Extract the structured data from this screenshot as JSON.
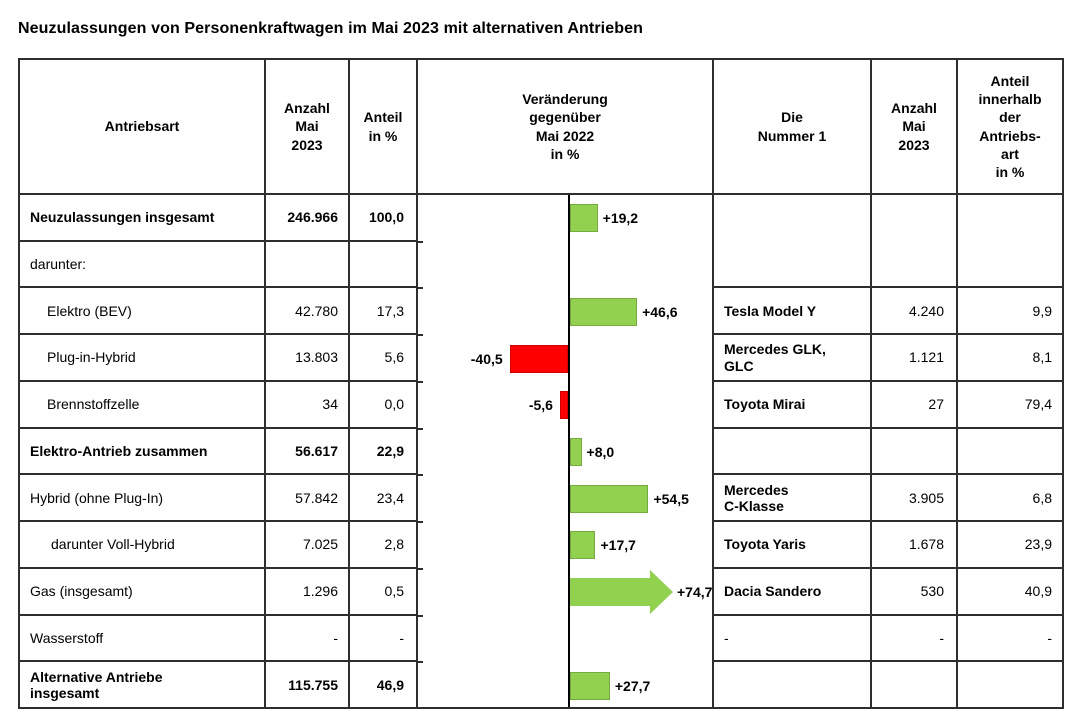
{
  "title": "Neuzulassungen von Personenkraftwagen im Mai 2023 mit alternativen Antrieben",
  "table": {
    "headers": {
      "antriebsart": "Antriebsart",
      "anzahl_mai_2023": "Anzahl\nMai\n2023",
      "anteil_prozent": "Anteil\nin %",
      "veraenderung": "Veränderung\ngegenüber\nMai 2022\nin %",
      "die_nummer_1": "Die\nNummer 1",
      "anzahl_mai_2023_modell": "Anzahl\nMai\n2023",
      "anteil_innerhalb": "Anteil\ninnerhalb\nder\nAntriebs-\nart\nin %"
    },
    "rows": [
      {
        "antriebsart": "Neuzulassungen insgesamt",
        "bold": true,
        "indent": 0,
        "anzahl": "246.966",
        "anteil": "100,0",
        "merged_top": true
      },
      {
        "antriebsart": "darunter:",
        "bold": false,
        "indent": 0,
        "anzahl": "",
        "anteil": "",
        "merged_top": true
      },
      {
        "antriebsart": "Elektro (BEV)",
        "bold": false,
        "indent": 1,
        "anzahl": "42.780",
        "anteil": "17,3",
        "model": "Tesla Model Y",
        "model_bold": true,
        "model_anzahl": "4.240",
        "model_anteil": "9,9"
      },
      {
        "antriebsart": "Plug-in-Hybrid",
        "bold": false,
        "indent": 1,
        "anzahl": "13.803",
        "anteil": "5,6",
        "model": "Mercedes GLK,\nGLC",
        "model_bold": true,
        "model_anzahl": "1.121",
        "model_anteil": "8,1"
      },
      {
        "antriebsart": "Brennstoffzelle",
        "bold": false,
        "indent": 1,
        "anzahl": "34",
        "anteil": "0,0",
        "model": "Toyota Mirai",
        "model_bold": true,
        "model_anzahl": "27",
        "model_anteil": "79,4"
      },
      {
        "antriebsart": "Elektro-Antrieb zusammen",
        "bold": true,
        "indent": 0,
        "anzahl": "56.617",
        "anteil": "22,9",
        "model": "",
        "model_bold": false,
        "model_anzahl": "",
        "model_anteil": ""
      },
      {
        "antriebsart": "Hybrid (ohne Plug-In)",
        "bold": false,
        "indent": 0,
        "anzahl": "57.842",
        "anteil": "23,4",
        "model": "Mercedes\nC-Klasse",
        "model_bold": true,
        "model_anzahl": "3.905",
        "model_anteil": "6,8"
      },
      {
        "antriebsart": "darunter Voll-Hybrid",
        "bold": false,
        "indent": 2,
        "anzahl": "7.025",
        "anteil": "2,8",
        "model": "Toyota Yaris",
        "model_bold": true,
        "model_anzahl": "1.678",
        "model_anteil": "23,9"
      },
      {
        "antriebsart": "Gas (insgesamt)",
        "bold": false,
        "indent": 0,
        "anzahl": "1.296",
        "anteil": "0,5",
        "model": "Dacia Sandero",
        "model_bold": true,
        "model_anzahl": "530",
        "model_anteil": "40,9"
      },
      {
        "antriebsart": "Wasserstoff",
        "bold": false,
        "indent": 0,
        "anzahl": "-",
        "anteil": "-",
        "model": "-",
        "model_bold": false,
        "model_anzahl": "-",
        "model_anteil": "-"
      },
      {
        "antriebsart": "Alternative Antriebe\ninsgesamt",
        "bold": true,
        "indent": 0,
        "anzahl": "115.755",
        "anteil": "46,9",
        "model": "",
        "model_bold": false,
        "model_anzahl": "",
        "model_anteil": ""
      }
    ]
  },
  "chart_data": {
    "type": "bar",
    "orientation": "horizontal",
    "title": "Veränderung gegenüber Mai 2022 in %",
    "unit": "%",
    "xlim": [
      -60,
      100
    ],
    "colors": {
      "positive": "#92D050",
      "negative": "#FF0000",
      "axis": "#000000"
    },
    "points": [
      {
        "row_index": 0,
        "category": "Neuzulassungen insgesamt",
        "value": 19.2,
        "label": "+19,2"
      },
      {
        "row_index": 2,
        "category": "Elektro (BEV)",
        "value": 46.6,
        "label": "+46,6"
      },
      {
        "row_index": 3,
        "category": "Plug-in-Hybrid",
        "value": -40.5,
        "label": "-40,5"
      },
      {
        "row_index": 4,
        "category": "Brennstoffzelle",
        "value": -5.6,
        "label": "-5,6"
      },
      {
        "row_index": 5,
        "category": "Elektro-Antrieb zusammen",
        "value": 8.0,
        "label": "+8,0"
      },
      {
        "row_index": 6,
        "category": "Hybrid (ohne Plug-In)",
        "value": 54.5,
        "label": "+54,5"
      },
      {
        "row_index": 7,
        "category": "darunter Voll-Hybrid",
        "value": 17.7,
        "label": "+17,7"
      },
      {
        "row_index": 8,
        "category": "Gas (insgesamt)",
        "value": 74.7,
        "label": "+74,7",
        "arrow": true
      },
      {
        "row_index": 10,
        "category": "Alternative Antriebe insgesamt",
        "value": 27.7,
        "label": "+27,7"
      }
    ]
  }
}
